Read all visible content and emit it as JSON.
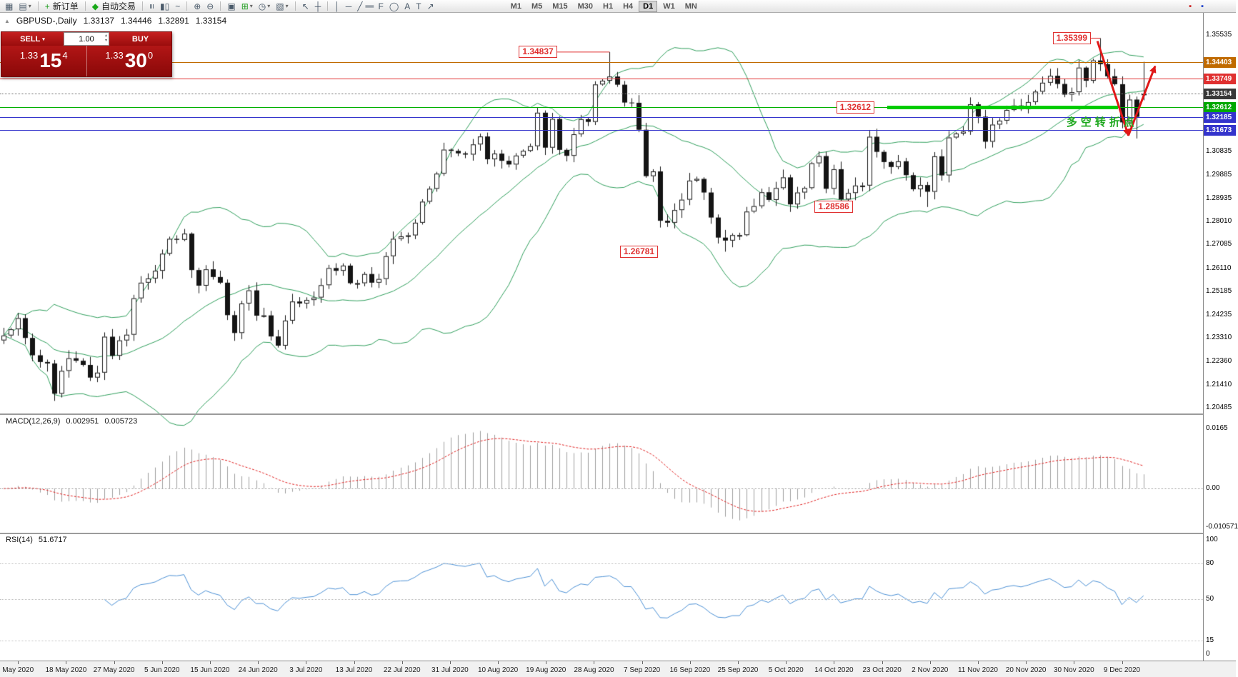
{
  "icons": {
    "caret_down": "▾",
    "caret_up": "▴",
    "panel_toggle": "▲"
  },
  "toolbar": {
    "groups": [
      {
        "items": [
          {
            "name": "new-chart-icon",
            "glyph": "▦"
          },
          {
            "name": "chart-profiles-icon",
            "glyph": "▤",
            "dropdown": true
          }
        ]
      },
      {
        "items": [
          {
            "name": "new-order-button",
            "glyph": "+",
            "glyph_color": "#1E9E1E",
            "label": "新订单"
          }
        ]
      },
      {
        "items": [
          {
            "name": "autotrading-button",
            "glyph": "◆",
            "glyph_color": "#18A818",
            "label": "自动交易"
          }
        ]
      },
      {
        "items": [
          {
            "name": "bar-chart-icon",
            "glyph": "≡",
            "rot": true
          },
          {
            "name": "candlestick-chart-icon",
            "glyph": "▮▯"
          },
          {
            "name": "line-chart-icon",
            "glyph": "~"
          }
        ]
      },
      {
        "items": [
          {
            "name": "zoom-in-icon",
            "glyph": "⊕"
          },
          {
            "name": "zoom-out-icon",
            "glyph": "⊖"
          }
        ]
      },
      {
        "items": [
          {
            "name": "tile-windows-icon",
            "glyph": "▣"
          },
          {
            "name": "indicators-icon",
            "glyph": "⊞",
            "glyph_color": "#1E9E1E",
            "dropdown": true
          },
          {
            "name": "periods-icon",
            "glyph": "◷",
            "dropdown": true
          },
          {
            "name": "templates-icon",
            "glyph": "▧",
            "dropdown": true
          }
        ]
      },
      {
        "items": [
          {
            "name": "cursor-icon",
            "glyph": "↖"
          },
          {
            "name": "crosshair-icon",
            "glyph": "┼"
          }
        ]
      },
      {
        "items": [
          {
            "name": "vertical-line-icon",
            "glyph": "│"
          },
          {
            "name": "horizontal-line-icon",
            "glyph": "─"
          },
          {
            "name": "trendline-icon",
            "glyph": "╱"
          },
          {
            "name": "channel-icon",
            "glyph": "∥",
            "rot": true
          },
          {
            "name": "fibonacci-icon",
            "glyph": "F"
          },
          {
            "name": "shapes-icon",
            "glyph": "◯"
          },
          {
            "name": "text-icon",
            "glyph": "A"
          },
          {
            "name": "label-icon",
            "glyph": "T"
          },
          {
            "name": "arrows-icon",
            "glyph": "↗"
          }
        ]
      }
    ],
    "timeframes": {
      "items": [
        "M1",
        "M5",
        "M15",
        "M30",
        "H1",
        "H4",
        "D1",
        "W1",
        "MN"
      ],
      "active": "D1"
    },
    "right_icons": [
      {
        "name": "toolbar-extra-icon-1",
        "glyph": "▪",
        "glyph_color": "#CC2222"
      },
      {
        "name": "toolbar-extra-icon-2",
        "glyph": "▪",
        "glyph_color": "#2244CC"
      }
    ]
  },
  "trade_panel": {
    "sell_label": "SELL",
    "buy_label": "BUY",
    "volume": "1.00",
    "sell_price": {
      "prefix": "1.33",
      "big": "15",
      "sup": "4"
    },
    "buy_price": {
      "prefix": "1.33",
      "big": "30",
      "sup": "0"
    }
  },
  "chart_header": {
    "symbol": "GBPUSD-,Daily",
    "open": "1.33137",
    "high": "1.34446",
    "low": "1.32891",
    "close": "1.33154"
  },
  "chart_data": {
    "type": "candlestick",
    "symbol": "GBPUSD-",
    "timeframe": "Daily",
    "price_range": {
      "top": 1.3642,
      "bottom": 1.2028
    },
    "closes": [
      1.234,
      1.2365,
      1.241,
      1.233,
      1.226,
      1.2233,
      1.2227,
      1.2105,
      1.2197,
      1.2248,
      1.2238,
      1.2221,
      1.217,
      1.219,
      1.2335,
      1.2258,
      1.232,
      1.2343,
      1.249,
      1.2553,
      1.257,
      1.2601,
      1.267,
      1.273,
      1.2726,
      1.2751,
      1.2604,
      1.2541,
      1.2607,
      1.2576,
      1.2553,
      1.2422,
      1.235,
      1.2469,
      1.2522,
      1.242,
      1.2421,
      1.2336,
      1.2299,
      1.24,
      1.2477,
      1.2469,
      1.2483,
      1.2493,
      1.2543,
      1.2612,
      1.2601,
      1.2622,
      1.2551,
      1.2551,
      1.2588,
      1.2553,
      1.2568,
      1.266,
      1.273,
      1.274,
      1.2744,
      1.2795,
      1.288,
      1.2932,
      1.2993,
      1.309,
      1.3085,
      1.3075,
      1.307,
      1.3111,
      1.3143,
      1.3051,
      1.3074,
      1.3045,
      1.303,
      1.3066,
      1.3085,
      1.3104,
      1.3239,
      1.3098,
      1.3214,
      1.3089,
      1.3065,
      1.3152,
      1.3213,
      1.3202,
      1.3353,
      1.3368,
      1.3385,
      1.3352,
      1.328,
      1.3279,
      1.317,
      1.2983,
      1.3002,
      1.2803,
      1.2795,
      1.2846,
      1.2888,
      1.2965,
      1.2972,
      1.2917,
      1.2816,
      1.2735,
      1.2723,
      1.2745,
      1.2745,
      1.284,
      1.2862,
      1.2918,
      1.2887,
      1.2935,
      1.2978,
      1.2869,
      1.2917,
      1.2935,
      1.3035,
      1.3064,
      1.2932,
      1.3011,
      1.2889,
      1.2915,
      1.2945,
      1.2945,
      1.3142,
      1.3081,
      1.304,
      1.302,
      1.3043,
      1.2987,
      1.293,
      1.2947,
      1.292,
      1.3063,
      1.2986,
      1.3139,
      1.3155,
      1.3163,
      1.3273,
      1.3223,
      1.3122,
      1.3191,
      1.3207,
      1.325,
      1.3268,
      1.3254,
      1.3282,
      1.3324,
      1.336,
      1.3388,
      1.3355,
      1.3312,
      1.3322,
      1.3421,
      1.3368,
      1.345,
      1.3435,
      1.3386,
      1.3354,
      1.32,
      1.3292,
      1.3222,
      1.33154
    ],
    "bar_overrides": {
      "7": {
        "l": 1.2076
      },
      "84": {
        "h": 1.34837
      },
      "100": {
        "l": 1.26781
      },
      "128": {
        "l": 1.28586
      },
      "152": {
        "h": 1.35399
      },
      "157": {
        "l": 1.3135
      },
      "158": {
        "o": 1.33137,
        "h": 1.34446,
        "l": 1.32891,
        "c": 1.33154
      }
    },
    "candle_colors": {
      "up_fill": "#ffffff",
      "down_fill": "#141414",
      "stroke": "#141414"
    },
    "bollinger": {
      "period": 20,
      "deviation": 2,
      "color": "#2E9E5B"
    },
    "date_labels": [
      "May 2020",
      "18 May 2020",
      "27 May 2020",
      "5 Jun 2020",
      "15 Jun 2020",
      "24 Jun 2020",
      "3 Jul 2020",
      "13 Jul 2020",
      "22 Jul 2020",
      "31 Jul 2020",
      "10 Aug 2020",
      "19 Aug 2020",
      "28 Aug 2020",
      "7 Sep 2020",
      "16 Sep 2020",
      "25 Sep 2020",
      "5 Oct 2020",
      "14 Oct 2020",
      "23 Oct 2020",
      "2 Nov 2020",
      "11 Nov 2020",
      "20 Nov 2020",
      "30 Nov 2020",
      "9 Dec 2020"
    ],
    "date_label_span": {
      "first_idx": 2,
      "last_idx": 155
    },
    "price_ticks": [
      1.35535,
      1.30835,
      1.29885,
      1.28935,
      1.2801,
      1.27085,
      1.2611,
      1.25185,
      1.24235,
      1.2331,
      1.2236,
      1.2141,
      1.20485
    ],
    "price_lines": [
      {
        "price": 1.34403,
        "color": "#C06A00",
        "style": "solid",
        "label_bg": "#C06A00"
      },
      {
        "price": 1.33749,
        "color": "#E03030",
        "style": "solid",
        "label_bg": "#E03030"
      },
      {
        "price": 1.33154,
        "color": "#707070",
        "style": "dotted",
        "label_bg": "#383838",
        "current": true
      },
      {
        "price": 1.32612,
        "color": "#00B000",
        "style": "solid",
        "label_bg": "#00A800"
      },
      {
        "price": 1.32185,
        "color": "#3434CC",
        "style": "solid",
        "label_bg": "#3434CC"
      },
      {
        "price": 1.31673,
        "color": "#3434CC",
        "style": "solid",
        "label_bg": "#3434CC"
      }
    ],
    "support_segment": {
      "price": 1.32612,
      "from_idx": 122.5,
      "to_idx": 154.5,
      "color": "#00CC00",
      "thickness": 5
    },
    "annotations": [
      {
        "text": "1.34837",
        "price": 1.34837,
        "box_right_idx": 77,
        "pointer_idx": 84
      },
      {
        "text": "1.35399",
        "price": 1.35399,
        "box_right_idx": 151,
        "pointer_idx": 152
      },
      {
        "text": "1.32612",
        "price": 1.32612,
        "box_right_idx": 121
      },
      {
        "text": "1.28586",
        "price": 1.28586,
        "box_right_idx": 118
      },
      {
        "text": "1.26781",
        "price": 1.26781,
        "box_right_idx": 91
      }
    ],
    "trend_arrows": [
      {
        "from_idx": 151.6,
        "from_price": 1.3528,
        "to_idx": 155.9,
        "to_price": 1.3147
      },
      {
        "from_idx": 155.9,
        "from_price": 1.3147,
        "to_idx": 159.6,
        "to_price": 1.3427
      }
    ],
    "arrow_color": "#E01818",
    "note_text": {
      "text": "多空转折点",
      "color": "#1FA81F",
      "idx": 147.3,
      "price": 1.3206
    },
    "macd": {
      "label": "MACD(12,26,9)",
      "values_text": [
        "0.002951",
        "0.005723"
      ],
      "params": [
        12,
        26,
        9
      ],
      "scale": {
        "max": 0.0165,
        "min": -0.010571,
        "labels": [
          {
            "text": "0.0165",
            "value": 0.0165
          },
          {
            "text": "0.00",
            "value": 0
          },
          {
            "text": "-0.010571",
            "value": -0.010571
          }
        ]
      },
      "colors": {
        "histogram": "#9E9E9E",
        "signal": "#E02020"
      }
    },
    "rsi": {
      "label": "RSI(14)",
      "value_text": "51.6717",
      "period": 14,
      "color": "#4A8FD4",
      "levels": [
        80,
        50,
        15
      ],
      "scale_labels": [
        {
          "text": "100",
          "value": 100
        },
        {
          "text": "80",
          "value": 80
        },
        {
          "text": "50",
          "value": 50
        },
        {
          "text": "15",
          "value": 15
        },
        {
          "text": "0",
          "value": 0
        }
      ]
    }
  }
}
